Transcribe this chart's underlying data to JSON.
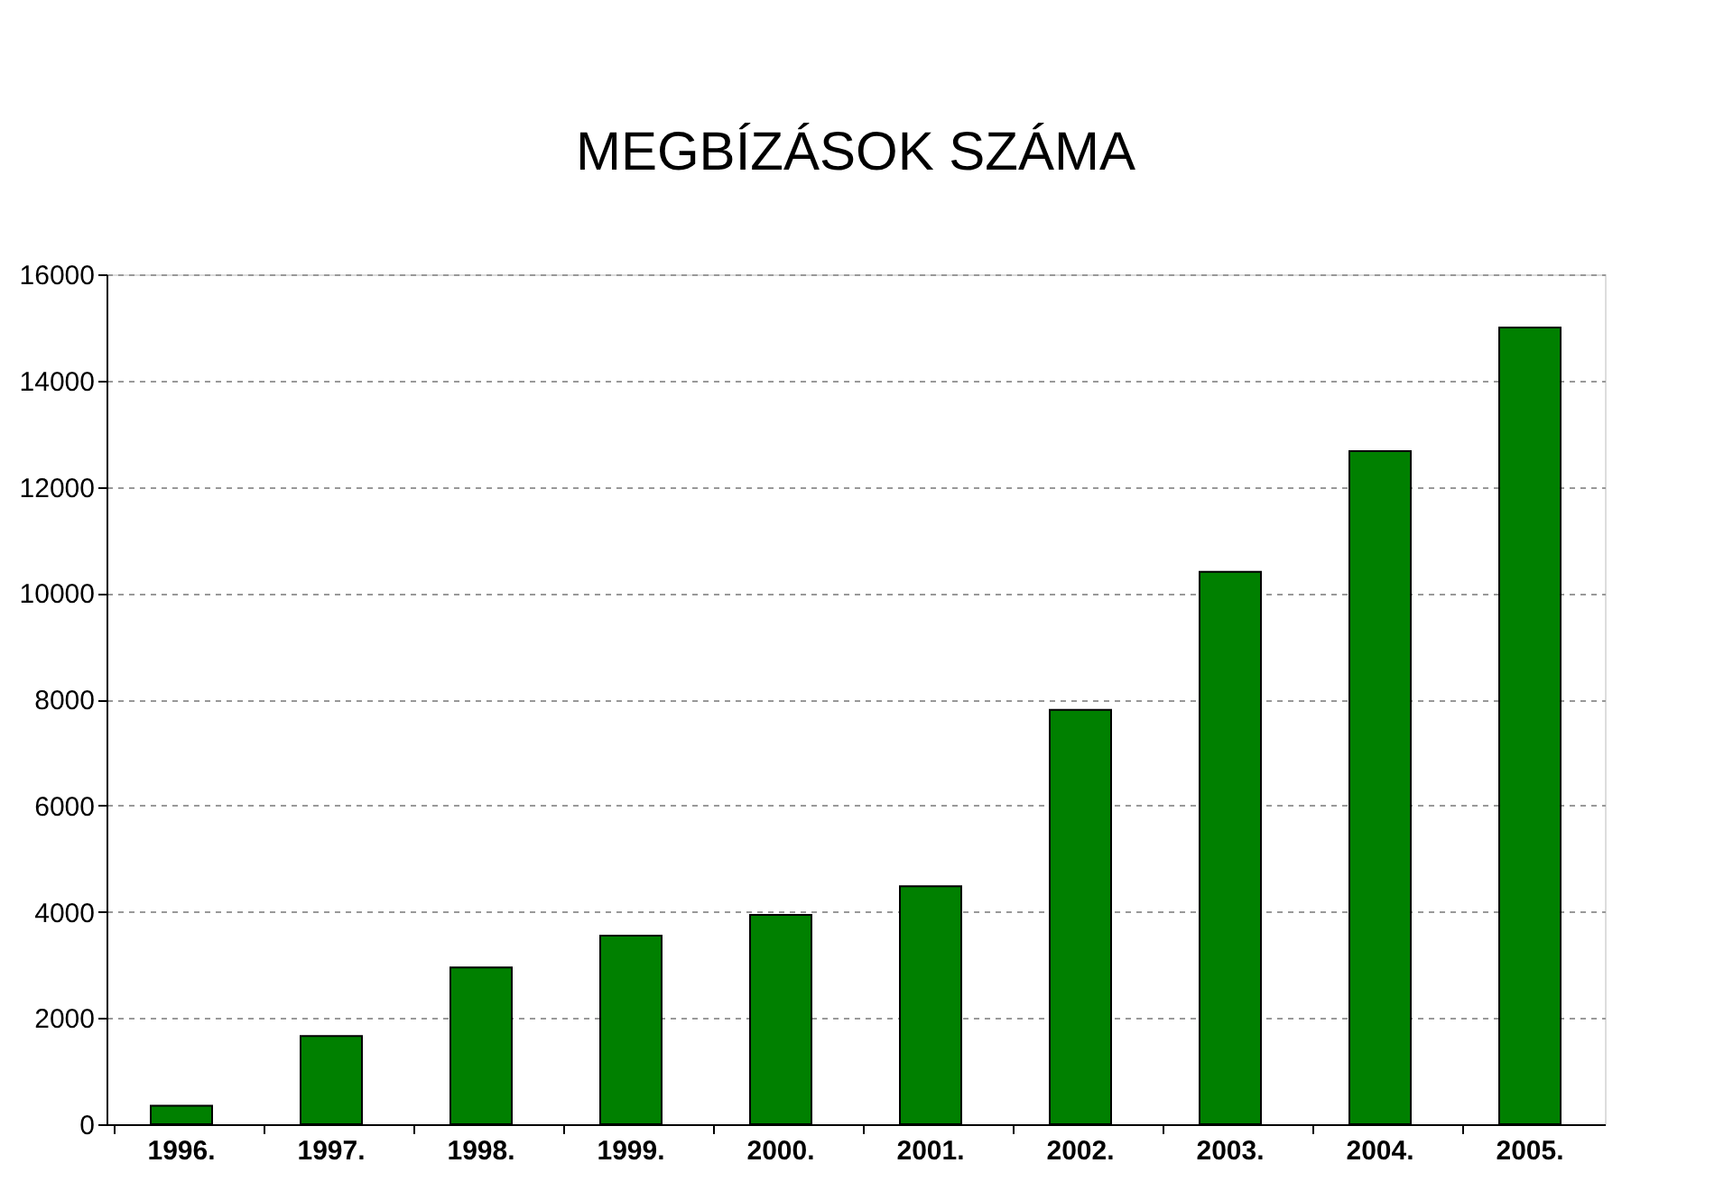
{
  "chart_data": {
    "type": "bar",
    "title": "MEGBÍZÁSOK SZÁMA",
    "categories": [
      "1996.",
      "1997.",
      "1998.",
      "1999.",
      "2000.",
      "2001.",
      "2002.",
      "2003.",
      "2004.",
      "2005."
    ],
    "values": [
      350,
      1660,
      2950,
      3550,
      3940,
      4480,
      7800,
      10400,
      12670,
      15000
    ],
    "color": "#008000",
    "ylim": [
      0,
      16000
    ],
    "yticks": [
      0,
      2000,
      4000,
      6000,
      8000,
      10000,
      12000,
      14000,
      16000
    ],
    "grid": "y"
  }
}
